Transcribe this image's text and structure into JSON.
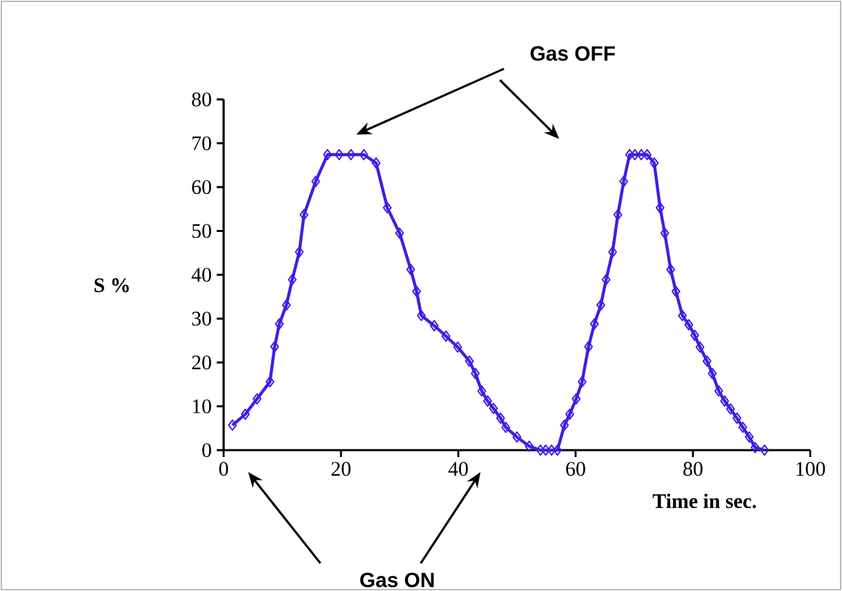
{
  "chart_data": {
    "type": "line",
    "xlabel": "Time in sec.",
    "ylabel": "S %",
    "annotations": [
      "Gas OFF",
      "Gas ON"
    ],
    "x": [
      1.5,
      3.7,
      5.7,
      7.9,
      8.7,
      9.5,
      10.7,
      11.7,
      12.9,
      13.7,
      15.7,
      17.7,
      19.7,
      21.7,
      23.9,
      26.0,
      27.9,
      30.0,
      31.9,
      32.9,
      33.7,
      35.9,
      37.9,
      39.9,
      41.9,
      42.9,
      44.0,
      45.0,
      46.0,
      47.2,
      48.1,
      50.0,
      52.1,
      54.0,
      54.9,
      55.9,
      56.9,
      58.1,
      59.0,
      60.1,
      61.1,
      62.2,
      63.2,
      64.3,
      65.2,
      66.3,
      67.2,
      68.2,
      69.2,
      70.1,
      71.2,
      72.2,
      73.4,
      74.4,
      75.2,
      76.2,
      77.1,
      78.2,
      79.3,
      80.3,
      81.2,
      82.4,
      83.3,
      84.4,
      85.4,
      86.4,
      87.5,
      88.5,
      89.6,
      90.6,
      92.2
    ],
    "series": [
      {
        "color": "#3c1fe6",
        "values": [
          5.7,
          8.2,
          11.7,
          15.6,
          23.6,
          28.8,
          33.1,
          38.9,
          45.2,
          53.7,
          61.3,
          67.4,
          67.4,
          67.4,
          67.4,
          65.5,
          55.3,
          49.5,
          41.2,
          36.2,
          30.7,
          28.4,
          26.0,
          23.5,
          20.3,
          17.5,
          13.5,
          11.2,
          9.5,
          7.3,
          5.2,
          3.0,
          0.9,
          0,
          0,
          0,
          0,
          5.7,
          8.2,
          11.7,
          15.6,
          23.6,
          28.8,
          33.1,
          38.9,
          45.2,
          53.7,
          61.3,
          67.4,
          67.4,
          67.4,
          67.4,
          65.5,
          55.3,
          49.5,
          41.2,
          36.2,
          30.7,
          28.6,
          26.2,
          23.5,
          20.3,
          17.5,
          13.5,
          11.2,
          9.4,
          7.3,
          5.2,
          3.0,
          0.6,
          0
        ]
      }
    ],
    "xlim": [
      0,
      100
    ],
    "ylim": [
      0,
      80
    ],
    "xticks": [
      0,
      20,
      40,
      60,
      80,
      100
    ],
    "yticks": [
      0,
      10,
      20,
      30,
      40,
      50,
      60,
      70,
      80
    ],
    "marker": "diamond",
    "line_style": "solid"
  }
}
